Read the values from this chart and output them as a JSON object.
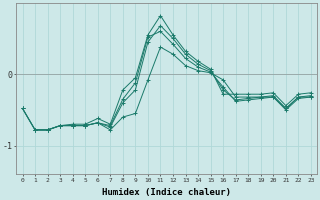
{
  "xlabel": "Humidex (Indice chaleur)",
  "background_color": "#cde8e8",
  "grid_color": "#b0d8d8",
  "line_color": "#1a7a6a",
  "x_values": [
    0,
    1,
    2,
    3,
    4,
    5,
    6,
    7,
    8,
    9,
    10,
    11,
    12,
    13,
    14,
    15,
    16,
    17,
    18,
    19,
    20,
    21,
    22,
    23
  ],
  "series": [
    [
      null,
      -0.78,
      -0.78,
      -0.72,
      -0.72,
      -0.72,
      -0.68,
      -0.78,
      -0.6,
      -0.55,
      -0.08,
      0.38,
      0.28,
      0.12,
      0.05,
      0.02,
      -0.08,
      -0.32,
      -0.32,
      -0.32,
      -0.32,
      -0.48,
      -0.32,
      -0.32
    ],
    [
      -0.48,
      -0.78,
      -0.78,
      -0.72,
      -0.72,
      -0.72,
      -0.68,
      -0.72,
      -0.35,
      -0.12,
      0.52,
      0.6,
      0.42,
      0.22,
      0.1,
      0.03,
      -0.18,
      -0.38,
      -0.36,
      -0.34,
      -0.32,
      -0.5,
      -0.34,
      -0.32
    ],
    [
      -0.48,
      -0.78,
      -0.78,
      -0.72,
      -0.72,
      -0.72,
      -0.68,
      -0.74,
      -0.4,
      -0.22,
      0.45,
      0.68,
      0.5,
      0.28,
      0.14,
      0.05,
      -0.22,
      -0.36,
      -0.34,
      -0.32,
      -0.3,
      -0.48,
      -0.32,
      -0.3
    ],
    [
      -0.48,
      -0.78,
      -0.78,
      -0.72,
      -0.7,
      -0.7,
      -0.62,
      -0.7,
      -0.22,
      -0.05,
      0.55,
      0.82,
      0.55,
      0.32,
      0.18,
      0.07,
      -0.28,
      -0.28,
      -0.28,
      -0.28,
      -0.26,
      -0.44,
      -0.28,
      -0.26
    ]
  ],
  "ylim": [
    -1.4,
    1.0
  ],
  "yticks": [
    -1,
    0
  ],
  "ytick_labels": [
    "-1",
    "0"
  ],
  "xlim": [
    -0.5,
    23.5
  ],
  "figsize": [
    3.2,
    2.0
  ],
  "dpi": 100
}
